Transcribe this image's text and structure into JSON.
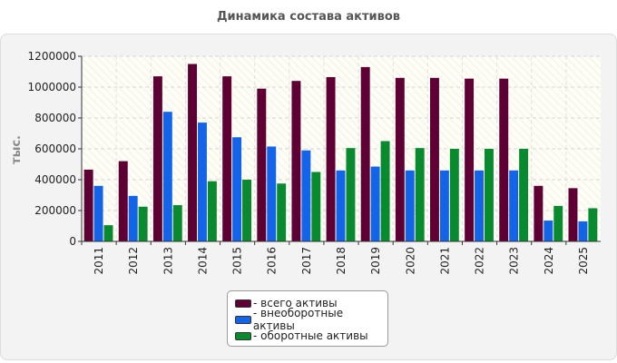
{
  "chart_data": {
    "type": "bar",
    "title": "Динамика состава активов",
    "ylabel": "тыс.",
    "xlabel": "",
    "ylim": [
      0,
      1200000
    ],
    "yticks": [
      "0",
      "200000",
      "400000",
      "600000",
      "800000",
      "1000000",
      "1200000"
    ],
    "categories": [
      "2011",
      "2012",
      "2013",
      "2014",
      "2015",
      "2016",
      "2017",
      "2018",
      "2019",
      "2020",
      "2021",
      "2022",
      "2023",
      "2024",
      "2025"
    ],
    "series": [
      {
        "name": "- всего активы",
        "color": "#5e0033",
        "values": [
          465000,
          520000,
          1070000,
          1150000,
          1070000,
          990000,
          1040000,
          1065000,
          1130000,
          1060000,
          1060000,
          1055000,
          1055000,
          360000,
          345000
        ]
      },
      {
        "name": "- внеоборотные активы",
        "color": "#1364e8",
        "values": [
          360000,
          295000,
          840000,
          770000,
          675000,
          615000,
          590000,
          460000,
          485000,
          460000,
          460000,
          460000,
          460000,
          135000,
          130000
        ]
      },
      {
        "name": "- оборотные активы",
        "color": "#0a8a2e",
        "values": [
          105000,
          225000,
          235000,
          390000,
          400000,
          375000,
          450000,
          605000,
          650000,
          605000,
          600000,
          600000,
          600000,
          230000,
          215000
        ]
      }
    ],
    "grid": true,
    "legend_position": "bottom-center"
  }
}
